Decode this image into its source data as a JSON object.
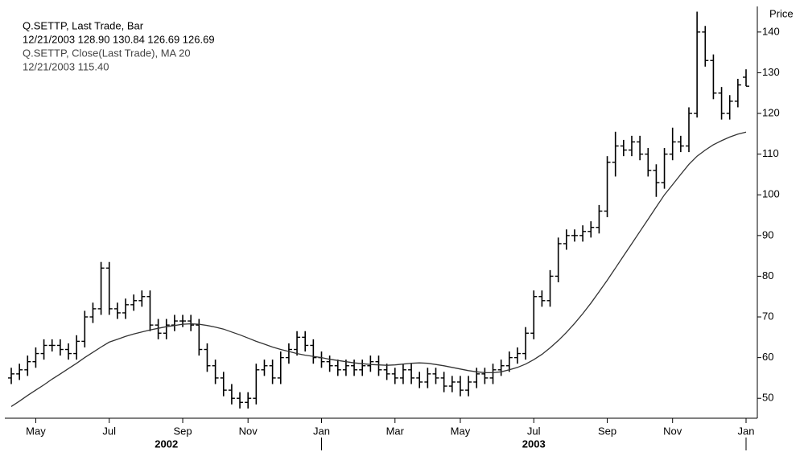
{
  "chart_data": {
    "type": "ohlc",
    "legend": [
      "Q.SETTP, Last Trade, Bar",
      "12/21/2003 128.90 130.84 126.69 126.69",
      "Q.SETTP, Close(Last Trade), MA 20",
      "12/21/2003 115.40"
    ],
    "y_label": "Price",
    "year_labels": [
      "2002",
      "2003"
    ],
    "categories": [
      null,
      null,
      null,
      "May",
      null,
      null,
      null,
      null,
      null,
      null,
      null,
      null,
      "Jul",
      null,
      null,
      null,
      null,
      null,
      null,
      null,
      null,
      "Sep",
      null,
      null,
      null,
      null,
      null,
      null,
      null,
      "Nov",
      null,
      null,
      null,
      null,
      null,
      null,
      null,
      null,
      "Jan",
      null,
      null,
      null,
      null,
      null,
      null,
      null,
      null,
      "Mar",
      null,
      null,
      null,
      null,
      null,
      null,
      null,
      "May",
      null,
      null,
      null,
      null,
      null,
      null,
      null,
      null,
      "Jul",
      null,
      null,
      null,
      null,
      null,
      null,
      null,
      null,
      "Sep",
      null,
      null,
      null,
      null,
      null,
      null,
      null,
      "Nov",
      null,
      null,
      null,
      null,
      null,
      null,
      null,
      null,
      "Jan"
    ],
    "bars": {
      "color": "#000000",
      "open": [
        55,
        56,
        57,
        59,
        61,
        63,
        63,
        62,
        61,
        64,
        70,
        72,
        82,
        72,
        71,
        73,
        74,
        75,
        68,
        66,
        68,
        69,
        69,
        68,
        62,
        58,
        55,
        52,
        50,
        49,
        50,
        57,
        58,
        55,
        60,
        62,
        65,
        63,
        60,
        59,
        58,
        57,
        58,
        57,
        58,
        59,
        57,
        56,
        55,
        57,
        55,
        54,
        56,
        55,
        53,
        54,
        52,
        54,
        56,
        55,
        57,
        58,
        60,
        61,
        66,
        75,
        74,
        80,
        88,
        90,
        90,
        91,
        92,
        96,
        108,
        112,
        111,
        113,
        110,
        106,
        103,
        110,
        113,
        112,
        120,
        140,
        133,
        125,
        120,
        123,
        128.9
      ],
      "high": [
        57.5,
        58.5,
        60.5,
        62.5,
        64.5,
        64.5,
        64.5,
        63.5,
        65.5,
        71.5,
        73.5,
        83.5,
        83.5,
        73.5,
        74.5,
        75.5,
        76.5,
        76.5,
        69.5,
        69.5,
        70.5,
        70.5,
        70.5,
        69.5,
        63.5,
        59.5,
        56.5,
        53.5,
        51.5,
        51.5,
        58.5,
        59.5,
        59.5,
        61.5,
        63.5,
        66.5,
        66.5,
        64.5,
        61.5,
        60.5,
        59.5,
        59.5,
        59.5,
        59.5,
        60.5,
        60.5,
        58.5,
        57.5,
        58.5,
        58.5,
        56.5,
        57.5,
        57.5,
        56.5,
        55.5,
        55.5,
        55.5,
        57.5,
        57.5,
        58.5,
        59.5,
        61.5,
        62.5,
        67.5,
        76.5,
        76.5,
        81.5,
        89.5,
        91.5,
        91.5,
        92.5,
        93.5,
        97.5,
        109.5,
        115.5,
        113.5,
        114.5,
        114.5,
        111.5,
        107.5,
        111.5,
        116.5,
        114.5,
        121.5,
        145,
        141.5,
        134.5,
        126.5,
        124.5,
        128.5,
        130.84
      ],
      "low": [
        53.5,
        54.5,
        55.5,
        57.5,
        59.5,
        61.5,
        60.5,
        59.5,
        59.5,
        62.5,
        68.5,
        70.5,
        70.5,
        69.5,
        69.5,
        71.5,
        72.5,
        66.5,
        64.5,
        64.5,
        66.5,
        67.5,
        66.5,
        60.5,
        56.5,
        53.5,
        50.5,
        48.5,
        47.5,
        47.5,
        48.5,
        55.5,
        53.5,
        53.5,
        58.5,
        60.5,
        61.5,
        58.5,
        57.5,
        56.5,
        55.5,
        55.5,
        55.5,
        55.5,
        56.5,
        55.5,
        54.5,
        53.5,
        53.5,
        53.5,
        52.5,
        52.5,
        53.5,
        51.5,
        51.5,
        50.5,
        50.5,
        52.5,
        53.5,
        53.5,
        55.5,
        56.5,
        58.5,
        59.5,
        64.5,
        72.5,
        72.5,
        78.5,
        86.5,
        88.5,
        88.5,
        89.5,
        90.5,
        94.5,
        104.5,
        109.5,
        109.5,
        108.5,
        104.5,
        99.5,
        101.5,
        108.5,
        110.5,
        110.5,
        119,
        131.5,
        123.5,
        118.5,
        118.5,
        121.5,
        126.69
      ],
      "close": [
        56,
        57,
        59,
        61,
        63,
        63,
        62,
        61,
        64,
        70,
        72,
        82,
        72,
        71,
        73,
        74,
        75,
        68,
        66,
        68,
        69,
        69,
        68,
        62,
        58,
        55,
        52,
        50,
        49,
        50,
        57,
        58,
        55,
        60,
        62,
        65,
        63,
        60,
        59,
        58,
        57,
        58,
        57,
        58,
        59,
        57,
        56,
        55,
        57,
        55,
        54,
        56,
        55,
        53,
        54,
        52,
        54,
        56,
        55,
        57,
        58,
        60,
        61,
        66,
        75,
        74,
        80,
        88,
        90,
        90,
        91,
        92,
        96,
        108,
        112,
        111,
        113,
        110,
        106,
        103,
        110,
        113,
        112,
        120,
        140,
        133,
        125,
        120,
        123,
        127,
        126.69
      ]
    },
    "ma": {
      "color": "#333333",
      "values": [
        48,
        49.3,
        50.7,
        52,
        53.3,
        54.7,
        56,
        57.3,
        58.6,
        60,
        61.3,
        62.6,
        63.8,
        64.5,
        65.2,
        65.8,
        66.3,
        66.8,
        67.2,
        67.6,
        67.9,
        68.2,
        68.3,
        68.2,
        67.9,
        67.5,
        67,
        66.3,
        65.6,
        64.8,
        64,
        63.3,
        62.6,
        62,
        61.5,
        61,
        60.6,
        60.3,
        60,
        59.6,
        59.3,
        59,
        58.7,
        58.5,
        58.3,
        58.2,
        58.1,
        58.2,
        58.4,
        58.6,
        58.7,
        58.6,
        58.3,
        58,
        57.6,
        57.2,
        56.8,
        56.5,
        56.3,
        56.3,
        56.5,
        57,
        57.6,
        58.4,
        59.5,
        60.8,
        62.4,
        64.2,
        66.2,
        68.4,
        70.8,
        73.4,
        76.2,
        79,
        82,
        85,
        88,
        91,
        94,
        97,
        100,
        102.5,
        105,
        107.5,
        109.5,
        111,
        112.3,
        113.3,
        114.2,
        114.9,
        115.4
      ]
    },
    "ylim": [
      45.5,
      145.5
    ],
    "yticks": [
      50,
      60,
      70,
      80,
      90,
      100,
      110,
      120,
      130,
      140
    ],
    "grid": false
  }
}
